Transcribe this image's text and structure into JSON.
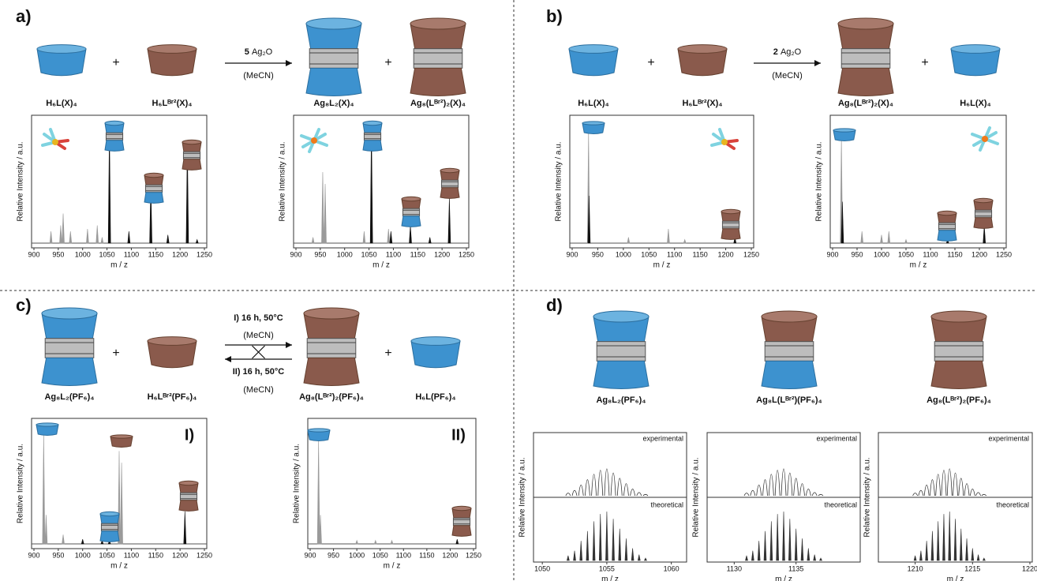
{
  "plus": "+",
  "panels": [
    {
      "label": "a)",
      "species": [
        "H₆L(X)₄",
        "H₆Lᴮʳ²(X)₄",
        "Ag₈L₂(X)₄",
        "Ag₈(Lᴮʳ²)₂(X)₄"
      ],
      "arrow": {
        "count": "5",
        "reagent": "Ag₂O",
        "solvent": "(MeCN)"
      },
      "spectra": [
        {
          "xlim": [
            900,
            1250
          ],
          "xticks": [
            900,
            950,
            1000,
            1050,
            1100,
            1150,
            1200,
            1250
          ],
          "ylim": [
            0,
            1
          ],
          "xlabel": "m / z",
          "ylabel": "Relative Intensity / a.u.",
          "series": [
            {
              "color": "#9a9a9a",
              "x": [
                935,
                955,
                960,
                975,
                1010,
                1030,
                1040
              ],
              "values": [
                0.1,
                0.15,
                0.25,
                0.1,
                0.12,
                0.15,
                0.05
              ]
            },
            {
              "color": "#111111",
              "x": [
                1055,
                1095,
                1140,
                1175,
                1215,
                1235
              ],
              "values": [
                0.97,
                0.1,
                0.5,
                0.07,
                0.85,
                0.03
              ]
            }
          ]
        },
        {
          "xlim": [
            900,
            1250
          ],
          "xticks": [
            900,
            950,
            1000,
            1050,
            1100,
            1150,
            1200,
            1250
          ],
          "ylim": [
            0,
            1
          ],
          "xlabel": "m / z",
          "ylabel": "Relative Intensity / a.u.",
          "series": [
            {
              "color": "#9a9a9a",
              "x": [
                935,
                955,
                960,
                1040,
                1090
              ],
              "values": [
                0.05,
                0.6,
                0.5,
                0.1,
                0.12
              ]
            },
            {
              "color": "#111111",
              "x": [
                1055,
                1095,
                1135,
                1175,
                1215
              ],
              "values": [
                1.0,
                0.1,
                0.15,
                0.05,
                0.38
              ]
            }
          ]
        }
      ]
    },
    {
      "label": "b)",
      "species": [
        "H₆L(X)₄",
        "H₆Lᴮʳ²(X)₄",
        "Ag₈(Lᴮʳ²)₂(X)₄",
        "H₆L(X)₄"
      ],
      "arrow": {
        "count": "2",
        "reagent": "Ag₂O",
        "solvent": "(MeCN)"
      },
      "spectra": [
        {
          "xlim": [
            900,
            1250
          ],
          "xticks": [
            900,
            950,
            1000,
            1050,
            1100,
            1150,
            1200,
            1250
          ],
          "ylim": [
            0,
            1
          ],
          "xlabel": "m / z",
          "ylabel": "Relative Intensity / a.u.",
          "series": [
            {
              "color": "#9a9a9a",
              "x": [
                932,
                1010,
                1088,
                1120
              ],
              "values": [
                0.95,
                0.05,
                0.12,
                0.03
              ]
            },
            {
              "color": "#111111",
              "x": [
                933,
                1218
              ],
              "values": [
                0.4,
                0.05
              ]
            }
          ]
        },
        {
          "xlim": [
            900,
            1250
          ],
          "xticks": [
            900,
            950,
            1000,
            1050,
            1100,
            1150,
            1200,
            1250
          ],
          "ylim": [
            0,
            1
          ],
          "xlabel": "m / z",
          "ylabel": "Relative Intensity / a.u.",
          "series": [
            {
              "color": "#9a9a9a",
              "x": [
                918,
                960,
                1000,
                1015,
                1050
              ],
              "values": [
                0.9,
                0.1,
                0.07,
                0.1,
                0.03
              ]
            },
            {
              "color": "#111111",
              "x": [
                920,
                1135,
                1210
              ],
              "values": [
                0.35,
                0.03,
                0.15
              ]
            }
          ]
        }
      ]
    },
    {
      "label": "c)",
      "species": [
        "Ag₈L₂(PF₆)₄",
        "H₆Lᴮʳ²(PF₆)₄",
        "Ag₈(Lᴮʳ²)₂(PF₆)₄",
        "H₆L(PF₆)₄"
      ],
      "arrow": {
        "forward": "I) 16 h, 50°C",
        "forward_solvent": "(MeCN)",
        "backward": "II) 16 h, 50°C",
        "backward_solvent": "(MeCN)"
      },
      "spectra": [
        {
          "label": "I)",
          "xlim": [
            900,
            1250
          ],
          "xticks": [
            900,
            950,
            1000,
            1050,
            1100,
            1150,
            1200,
            1250
          ],
          "ylim": [
            0,
            1
          ],
          "xlabel": "m / z",
          "ylabel": "Relative Intensity / a.u.",
          "series": [
            {
              "color": "#9a9a9a",
              "x": [
                920,
                925,
                960,
                1075,
                1080
              ],
              "values": [
                0.95,
                0.25,
                0.08,
                0.8,
                0.7
              ]
            },
            {
              "color": "#111111",
              "x": [
                1000,
                1040,
                1055,
                1210
              ],
              "values": [
                0.04,
                0.03,
                0.03,
                0.28
              ]
            }
          ]
        },
        {
          "label": "II)",
          "xlim": [
            900,
            1250
          ],
          "xticks": [
            900,
            950,
            1000,
            1050,
            1100,
            1150,
            1200,
            1250
          ],
          "ylim": [
            0,
            1
          ],
          "xlabel": "m / z",
          "ylabel": "Relative Intensity / a.u.",
          "series": [
            {
              "color": "#9a9a9a",
              "x": [
                918,
                922,
                1000,
                1040,
                1075
              ],
              "values": [
                0.9,
                0.25,
                0.03,
                0.03,
                0.03
              ]
            },
            {
              "color": "#111111",
              "x": [
                1215
              ],
              "values": [
                0.04
              ]
            }
          ]
        }
      ]
    },
    {
      "label": "d)",
      "species": [
        "Ag₈L₂(PF₆)₄",
        "Ag₈L(Lᴮʳ²)(PF₆)₄",
        "Ag₈(Lᴮʳ²)₂(PF₆)₄"
      ],
      "spectra": [
        {
          "top_label": "experimental",
          "bottom_label": "theoretical",
          "xlim": [
            1049.5,
            1061
          ],
          "xticks": [
            1050,
            1055,
            1060
          ],
          "ylim": [
            0,
            1
          ],
          "xlabel": "m / z",
          "ylabel": "Relative Intensity / a.u.",
          "series": [
            {
              "color": "#333333",
              "x": [
                1052,
                1052.5,
                1053,
                1053.5,
                1054,
                1054.5,
                1055,
                1055.5,
                1056,
                1056.5,
                1057,
                1057.5,
                1058
              ],
              "values": [
                0.1,
                0.2,
                0.4,
                0.6,
                0.8,
                0.95,
                1,
                0.85,
                0.65,
                0.45,
                0.25,
                0.12,
                0.05
              ]
            },
            {
              "color": "#333333",
              "x": [
                1052,
                1052.5,
                1053,
                1053.5,
                1054,
                1054.5,
                1055,
                1055.5,
                1056,
                1056.5,
                1057,
                1057.5,
                1058
              ],
              "values": [
                0.1,
                0.2,
                0.4,
                0.6,
                0.8,
                0.95,
                1,
                0.85,
                0.65,
                0.45,
                0.25,
                0.12,
                0.05
              ]
            }
          ]
        },
        {
          "top_label": "experimental",
          "bottom_label": "theoretical",
          "xlim": [
            1128,
            1140
          ],
          "xticks": [
            1130,
            1135
          ],
          "ylim": [
            0,
            1
          ],
          "xlabel": "m / z",
          "ylabel": "Relative Intensity / a.u.",
          "series": [
            {
              "color": "#333333",
              "x": [
                1131,
                1131.5,
                1132,
                1132.5,
                1133,
                1133.5,
                1134,
                1134.5,
                1135,
                1135.5,
                1136,
                1136.5,
                1137
              ],
              "values": [
                0.1,
                0.2,
                0.4,
                0.6,
                0.8,
                0.95,
                1,
                0.85,
                0.65,
                0.45,
                0.25,
                0.12,
                0.05
              ]
            },
            {
              "color": "#333333",
              "x": [
                1131,
                1131.5,
                1132,
                1132.5,
                1133,
                1133.5,
                1134,
                1134.5,
                1135,
                1135.5,
                1136,
                1136.5,
                1137
              ],
              "values": [
                0.1,
                0.2,
                0.4,
                0.6,
                0.8,
                0.95,
                1,
                0.85,
                0.65,
                0.45,
                0.25,
                0.12,
                0.05
              ]
            }
          ]
        },
        {
          "top_label": "experimental",
          "bottom_label": "theoretical",
          "xlim": [
            1207,
            1220
          ],
          "xticks": [
            1210,
            1215,
            1220
          ],
          "ylim": [
            0,
            1
          ],
          "xlabel": "m / z",
          "ylabel": "Relative Intensity / a.u.",
          "series": [
            {
              "color": "#333333",
              "x": [
                1210,
                1210.5,
                1211,
                1211.5,
                1212,
                1212.5,
                1213,
                1213.5,
                1214,
                1214.5,
                1215,
                1215.5,
                1216
              ],
              "values": [
                0.1,
                0.2,
                0.4,
                0.6,
                0.8,
                0.95,
                1,
                0.85,
                0.65,
                0.45,
                0.25,
                0.12,
                0.05
              ]
            },
            {
              "color": "#333333",
              "x": [
                1210,
                1210.5,
                1211,
                1211.5,
                1212,
                1212.5,
                1213,
                1213.5,
                1214,
                1214.5,
                1215,
                1215.5,
                1216
              ],
              "values": [
                0.1,
                0.2,
                0.4,
                0.6,
                0.8,
                0.95,
                1,
                0.85,
                0.65,
                0.45,
                0.25,
                0.12,
                0.05
              ]
            }
          ]
        }
      ]
    }
  ]
}
